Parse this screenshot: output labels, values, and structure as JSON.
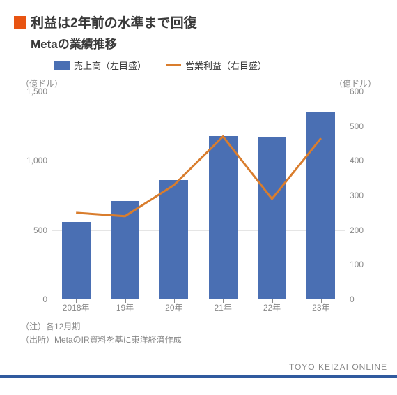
{
  "title": "利益は2年前の水準まで回復",
  "subtitle": "Metaの業績推移",
  "legend": {
    "bar": "売上高（左目盛）",
    "line": "営業利益（右目盛）"
  },
  "unit_left": "（億ドル）",
  "unit_right": "（億ドル）",
  "chart": {
    "type": "bar+line",
    "categories": [
      "2018年",
      "19年",
      "20年",
      "21年",
      "22年",
      "23年"
    ],
    "bar_values": [
      560,
      710,
      860,
      1180,
      1170,
      1350
    ],
    "line_values": [
      250,
      240,
      330,
      470,
      290,
      465
    ],
    "left_axis": {
      "min": 0,
      "max": 1500,
      "step": 500
    },
    "right_axis": {
      "min": 0,
      "max": 600,
      "step": 100
    },
    "bar_color": "#4a6fb3",
    "line_color": "#d97d2d",
    "line_width": 3,
    "bar_width_ratio": 0.58,
    "grid_color": "#e5e5e5",
    "axis_color": "#888",
    "background": "#ffffff",
    "label_color": "#888",
    "label_fontsize": 12
  },
  "notes": {
    "n1": "（注）各12月期",
    "n2": "（出所）MetaのIR資料を基に東洋経済作成"
  },
  "footer": "TOYO KEIZAI ONLINE",
  "marker_color": "#e85412"
}
